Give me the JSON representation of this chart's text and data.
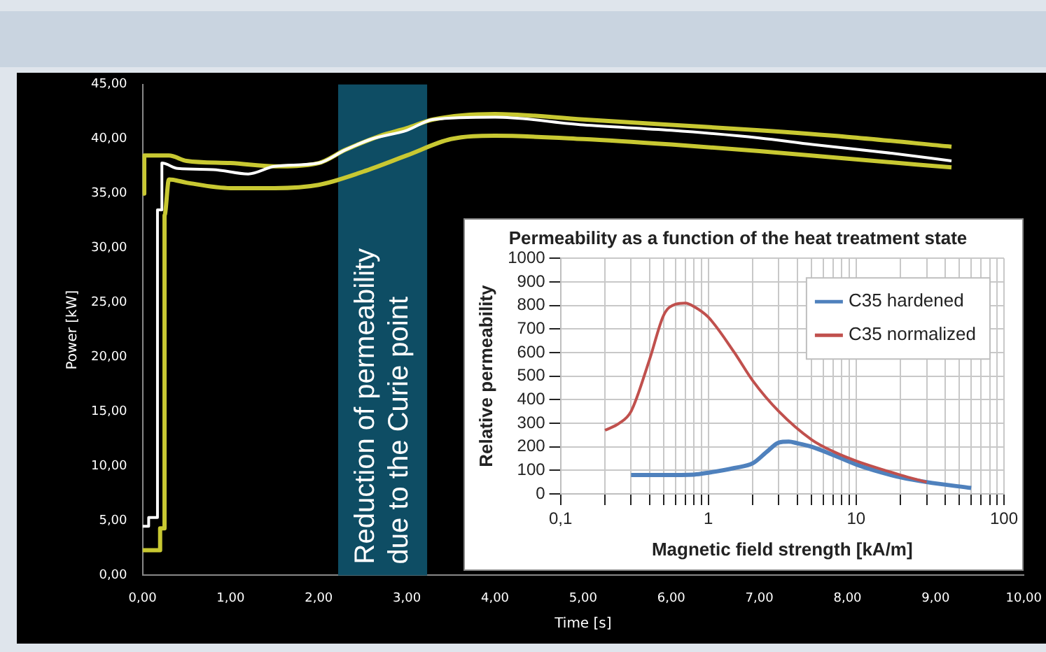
{
  "chart_data": [
    {
      "type": "line",
      "xlabel": "Time [s]",
      "ylabel": "Power [kW]",
      "xlim": [
        0,
        10
      ],
      "ylim": [
        0,
        45
      ],
      "xticks": [
        {
          "value": 0,
          "label": "0,00"
        },
        {
          "value": 1,
          "label": "1,00"
        },
        {
          "value": 2,
          "label": "2,00"
        },
        {
          "value": 3,
          "label": "3,00"
        },
        {
          "value": 4,
          "label": "4,00"
        },
        {
          "value": 5,
          "label": "5,00"
        },
        {
          "value": 6,
          "label": "6,00"
        },
        {
          "value": 7,
          "label": "7,00"
        },
        {
          "value": 8,
          "label": "8,00"
        },
        {
          "value": 9,
          "label": "9,00"
        },
        {
          "value": 10,
          "label": "10,00"
        }
      ],
      "yticks": [
        {
          "value": 0,
          "label": "0,00"
        },
        {
          "value": 5,
          "label": "5,00"
        },
        {
          "value": 10,
          "label": "10,00"
        },
        {
          "value": 15,
          "label": "15,00"
        },
        {
          "value": 20,
          "label": "20,00"
        },
        {
          "value": 25,
          "label": "25,00"
        },
        {
          "value": 30,
          "label": "30,00"
        },
        {
          "value": 35,
          "label": "35,00"
        },
        {
          "value": 40,
          "label": "40,00"
        },
        {
          "value": 45,
          "label": "45,00"
        }
      ],
      "grid": false,
      "legend": false,
      "marker": "none",
      "bands": [
        {
          "axis": "x",
          "from": 2.22,
          "to": 3.23,
          "label": "Reduction of permeability due to the Curie point",
          "color": "#0e4d64"
        }
      ],
      "series": [
        {
          "color": "#c8c832",
          "x": [
            0,
            0.02,
            0.02,
            0.3,
            0.5,
            1.0,
            1.5,
            2.0,
            2.3,
            2.7,
            3.0,
            3.3,
            4.0,
            5.0,
            6.0,
            7.0,
            8.0,
            9.18
          ],
          "values": [
            35,
            35,
            38.5,
            38.5,
            38.0,
            37.8,
            37.5,
            37.8,
            39.0,
            40.3,
            41.0,
            41.8,
            42.3,
            41.8,
            41.3,
            40.8,
            40.2,
            39.3
          ]
        },
        {
          "color": "#c8c832",
          "x": [
            0,
            0.2,
            0.2,
            0.25,
            0.25,
            0.3,
            0.5,
            1.0,
            1.5,
            2.0,
            2.5,
            3.0,
            3.5,
            4.0,
            5.0,
            6.0,
            7.0,
            8.0,
            9.18
          ],
          "values": [
            2.3,
            2.3,
            4.3,
            4.3,
            33.0,
            36.3,
            36.0,
            35.5,
            35.5,
            35.8,
            37.0,
            38.5,
            40.0,
            40.3,
            40.0,
            39.5,
            38.9,
            38.2,
            37.4
          ]
        },
        {
          "color": "#ffffff",
          "x": [
            0,
            0.07,
            0.07,
            0.17,
            0.17,
            0.22,
            0.22,
            0.4,
            0.8,
            1.2,
            1.5,
            2.0,
            2.3,
            2.6,
            3.0,
            3.3,
            4.0,
            5.0,
            6.0,
            7.0,
            7.6,
            8.5,
            9.18
          ],
          "values": [
            4.5,
            4.5,
            5.3,
            5.3,
            33.5,
            33.5,
            37.8,
            37.3,
            37.2,
            36.8,
            37.5,
            37.8,
            39.0,
            40.0,
            40.8,
            41.8,
            42.0,
            41.3,
            40.8,
            40.1,
            39.5,
            38.7,
            38.0
          ]
        }
      ]
    },
    {
      "type": "line",
      "title": "Permeability as a function of the heat treatment state",
      "xlabel": "Magnetic field strength [kA/m]",
      "ylabel": "Relative permeability",
      "log": "x",
      "xlim": [
        0.1,
        100
      ],
      "ylim": [
        0,
        1000
      ],
      "xticks": [
        {
          "value": 0.1,
          "label": "0,1"
        },
        {
          "value": 0.2,
          "label": null
        },
        {
          "value": 0.3,
          "label": null
        },
        {
          "value": 0.4,
          "label": null
        },
        {
          "value": 0.5,
          "label": null
        },
        {
          "value": 0.6,
          "label": null
        },
        {
          "value": 0.7,
          "label": null
        },
        {
          "value": 0.8,
          "label": null
        },
        {
          "value": 0.9,
          "label": null
        },
        1,
        {
          "value": 2,
          "label": null
        },
        {
          "value": 3,
          "label": null
        },
        {
          "value": 4,
          "label": null
        },
        {
          "value": 5,
          "label": null
        },
        {
          "value": 6,
          "label": null
        },
        {
          "value": 7,
          "label": null
        },
        {
          "value": 8,
          "label": null
        },
        {
          "value": 9,
          "label": null
        },
        10,
        {
          "value": 20,
          "label": null
        },
        {
          "value": 30,
          "label": null
        },
        {
          "value": 40,
          "label": null
        },
        {
          "value": 50,
          "label": null
        },
        {
          "value": 60,
          "label": null
        },
        {
          "value": 70,
          "label": null
        },
        {
          "value": 80,
          "label": null
        },
        {
          "value": 90,
          "label": null
        },
        100
      ],
      "yticks": [
        0,
        100,
        200,
        300,
        400,
        500,
        600,
        700,
        800,
        900,
        1000
      ],
      "grid": true,
      "legend": "top right",
      "marker": "none",
      "series": [
        {
          "name": "C35 hardened",
          "color": "#4f81bd",
          "x": [
            0.3,
            0.5,
            0.8,
            1,
            1.5,
            2,
            2.5,
            3,
            3.5,
            4,
            5,
            7,
            10,
            15,
            20,
            30,
            60
          ],
          "values": [
            80,
            80,
            82,
            90,
            110,
            130,
            180,
            218,
            222,
            215,
            200,
            165,
            125,
            90,
            70,
            50,
            25
          ]
        },
        {
          "name": "C35 normalized",
          "color": "#c0504d",
          "x": [
            0.2,
            0.25,
            0.3,
            0.4,
            0.5,
            0.6,
            0.7,
            0.8,
            1,
            1.5,
            2,
            3,
            5,
            7,
            10,
            20,
            30
          ],
          "values": [
            270,
            300,
            350,
            570,
            760,
            805,
            810,
            795,
            750,
            600,
            480,
            350,
            230,
            180,
            140,
            80,
            50
          ]
        }
      ]
    }
  ]
}
